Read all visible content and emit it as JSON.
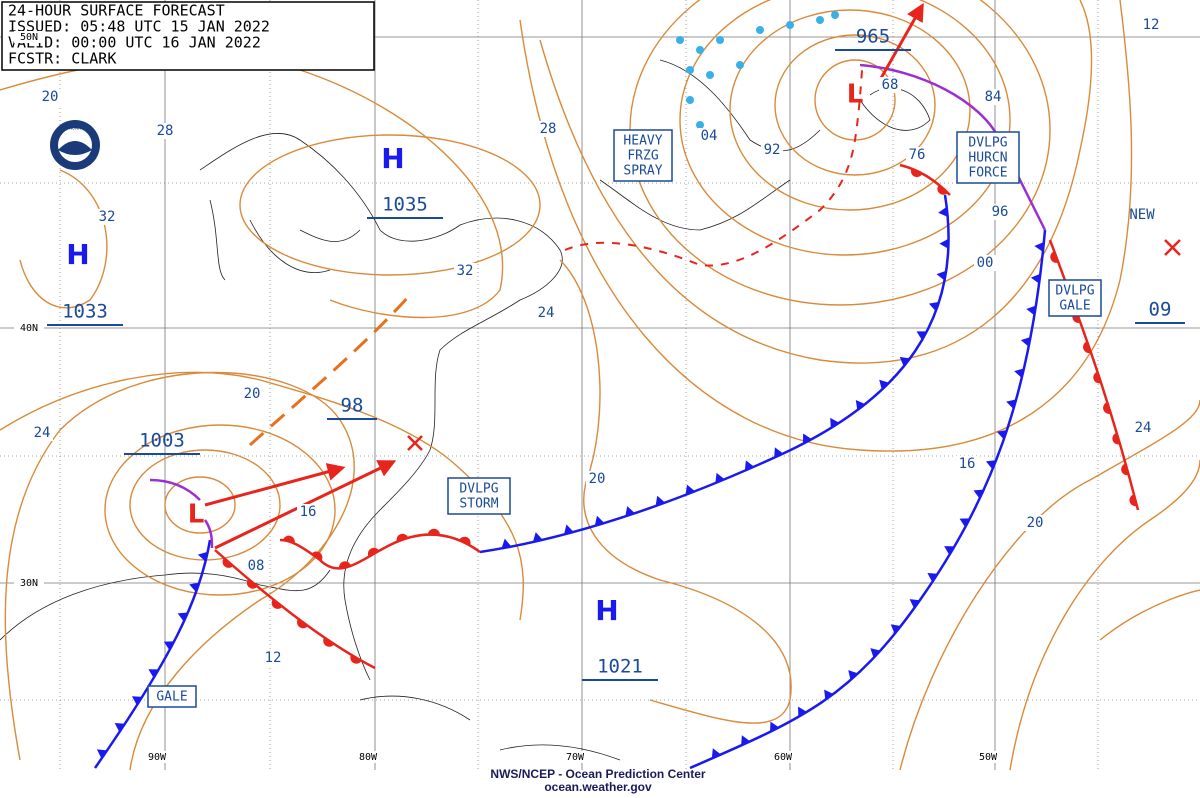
{
  "header": {
    "lines": [
      "24-HOUR SURFACE FORECAST",
      "ISSUED: 05:48 UTC 15 JAN 2022",
      "VALID:  00:00 UTC 16 JAN 2022",
      "FCSTR: CLARK"
    ]
  },
  "logo": "NOAA",
  "pressure_centers": [
    {
      "symbol": "H",
      "value": "1035"
    },
    {
      "symbol": "H",
      "value": "1033"
    },
    {
      "symbol": "H",
      "value": "1021"
    },
    {
      "symbol": "L",
      "value": "1003"
    },
    {
      "symbol": "L",
      "value": "965"
    }
  ],
  "other_pressure_labels": [
    "98",
    "09",
    "NEW"
  ],
  "isobar_labels": [
    "20",
    "28",
    "32",
    "24",
    "20",
    "16",
    "08",
    "12",
    "32",
    "24",
    "28",
    "20",
    "04",
    "92",
    "68",
    "76",
    "84",
    "96",
    "00",
    "16",
    "20",
    "24",
    "12"
  ],
  "warnings": [
    {
      "lines": [
        "HEAVY",
        "FRZG",
        "SPRAY"
      ]
    },
    {
      "lines": [
        "DVLPG",
        "HURCN",
        "FORCE"
      ]
    },
    {
      "lines": [
        "DVLPG",
        "GALE"
      ]
    },
    {
      "lines": [
        "DVLPG",
        "STORM"
      ]
    },
    {
      "lines": [
        "GALE"
      ]
    }
  ],
  "latitude_labels": [
    "50N",
    "40N",
    "30N"
  ],
  "longitude_labels": [
    "90W",
    "80W",
    "70W",
    "60W",
    "50W"
  ],
  "footer": {
    "line1": "NWS/NCEP - Ocean Prediction Center",
    "line2": "ocean.weather.gov"
  }
}
